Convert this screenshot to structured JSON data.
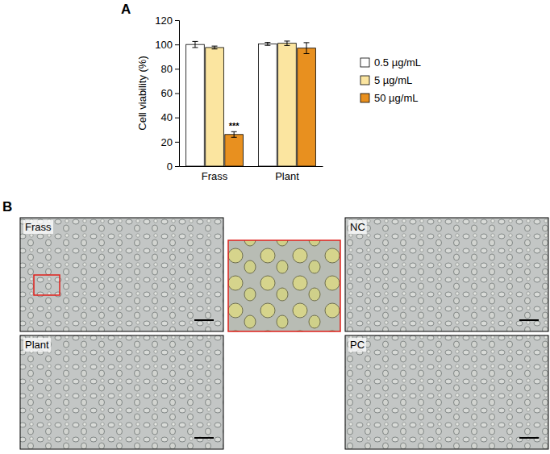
{
  "chart_data": {
    "type": "bar",
    "panel": "A",
    "y_label": "Cell viability (%)",
    "categories": [
      "Frass",
      "Plant"
    ],
    "series": [
      {
        "name": "0.5 µg/mL",
        "color": "#ffffff",
        "values": [
          100,
          100.5
        ],
        "errors": [
          2.5,
          1.2
        ]
      },
      {
        "name": "5 µg/mL",
        "color": "#fbe5a0",
        "values": [
          97.5,
          101
        ],
        "errors": [
          1.2,
          1.8
        ]
      },
      {
        "name": "50 µg/mL",
        "color": "#e8901f",
        "values": [
          26,
          97
        ],
        "errors": [
          2.3,
          4.5
        ],
        "significance": [
          "***",
          null
        ]
      }
    ],
    "ylim": [
      0,
      120
    ],
    "yticks": [
      0,
      20,
      40,
      60,
      80,
      100,
      120
    ],
    "legend": "right",
    "grid": false
  },
  "micrographs": {
    "panel": "B",
    "images": [
      {
        "label": "Frass"
      },
      {
        "label": "NC"
      },
      {
        "label": "Plant"
      },
      {
        "label": "PC"
      }
    ]
  }
}
